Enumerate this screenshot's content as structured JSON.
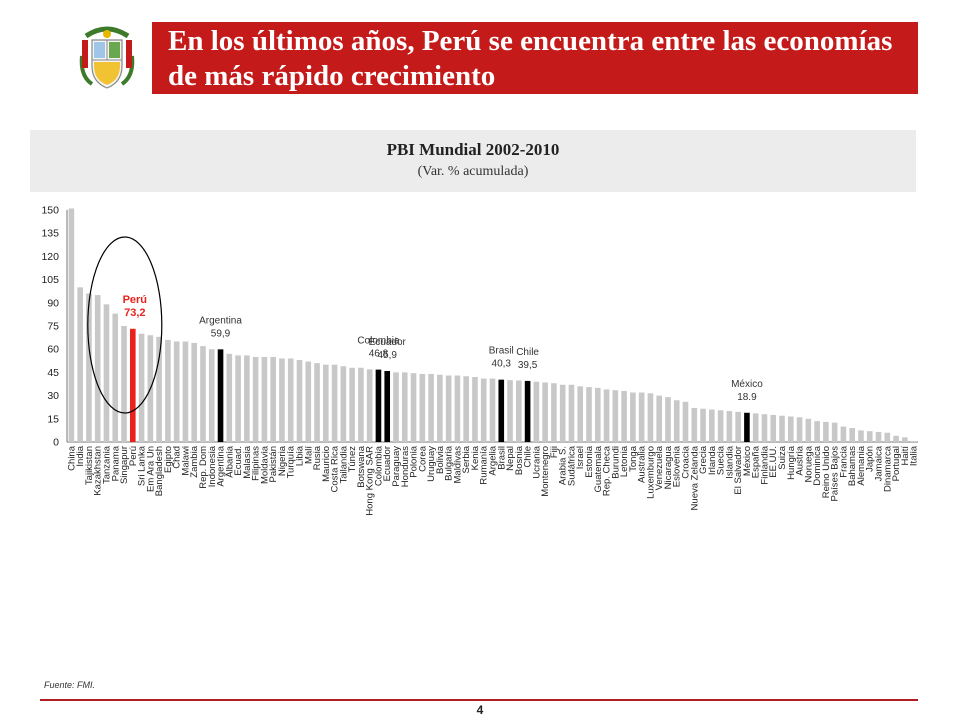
{
  "header": {
    "title": "En los últimos años, Perú se encuentra entre las economías de más rápido crecimiento"
  },
  "chart_header": {
    "title": "PBI Mundial 2002-2010",
    "subtitle": "(Var. % acumulada)"
  },
  "footer": {
    "source": "Fuente: FMI.",
    "page": "4"
  },
  "colors": {
    "title_bar": "#c41a1a",
    "bar_default": "#c8c8c8",
    "bar_highlight_peru": "#e8231c",
    "bar_highlight_other": "#000000",
    "peru_label": "#e8231c",
    "ellipse": "#000000"
  },
  "chart_data": {
    "type": "bar",
    "ylim": [
      0,
      150
    ],
    "yticks": [
      0,
      15,
      30,
      45,
      60,
      75,
      90,
      105,
      120,
      135,
      150
    ],
    "categories": [
      "China",
      "India",
      "Tajikistan",
      "Kazakhstan",
      "Tanzania",
      "Panama",
      "Singapur",
      "Perú",
      "Sri Lanka",
      "Em Ara Un",
      "Bangladesh",
      "Egipto",
      "Chad",
      "Malawi",
      "Zambia",
      "Rep. Dom",
      "Indonesia",
      "Argentina",
      "Albania",
      "Ecuad.",
      "Malasia",
      "Filipinas",
      "Moldavia",
      "Pakistán",
      "Nigeria",
      "Turquía",
      "Libia",
      "Malí",
      "Rusia",
      "Mauricio",
      "Costa Rica",
      "Tailandia",
      "Túnez",
      "Botswana",
      "Hong Kong SAR",
      "Colombia",
      "Ecuador",
      "Paraguay",
      "Honduras",
      "Polonia",
      "Corea",
      "Uruguay",
      "Bolivia",
      "Bulgaria",
      "Maldivas",
      "Serbia",
      "Kenia",
      "Rumanía",
      "Argelia",
      "Brasil",
      "Nepal",
      "Bosnia",
      "Chile",
      "Ucrania",
      "Montenegro",
      "Fiji",
      "Arabia S.",
      "Sudáfrica",
      "Israel",
      "Estonia",
      "Guatemala",
      "Rep. Checa",
      "Burundi",
      "Letonia",
      "Tonga",
      "Australia",
      "Luxemburgo",
      "Venezuela",
      "Nicaragua",
      "Eslovenia",
      "Croacia",
      "Nueva Zelanda",
      "Grecia",
      "Irlanda",
      "Suecia",
      "Islandia",
      "El Salvador",
      "México",
      "España",
      "Finlandia",
      "EE.UU.",
      "Suiza",
      "Hungría",
      "Austria",
      "Noruega",
      "Dominica",
      "Reino Unido",
      "Países Bajos",
      "Francia",
      "Bahamas",
      "Alemania",
      "Japón",
      "Jamaica",
      "Dinamarca",
      "Portugal",
      "Haití",
      "Italia"
    ],
    "values": [
      151,
      100,
      96,
      95,
      89,
      83,
      75,
      73.2,
      70,
      69,
      68,
      66,
      65,
      65,
      64,
      62,
      60,
      59.9,
      57,
      56,
      56,
      55,
      55,
      55,
      54,
      54,
      53,
      52,
      51,
      50,
      50,
      49,
      48,
      48,
      47,
      46.8,
      45.9,
      45,
      45,
      44.5,
      44,
      44,
      43.5,
      43,
      43,
      42.5,
      42,
      41,
      41,
      40.3,
      40,
      39.8,
      39.5,
      39,
      38.5,
      38,
      37,
      37,
      36,
      35.5,
      35,
      34,
      33.5,
      33,
      32,
      32,
      31.5,
      30,
      29,
      27,
      26,
      22,
      21.5,
      21,
      20.5,
      20,
      19.5,
      18.9,
      18.5,
      18,
      17.5,
      17,
      16.5,
      16,
      15,
      13.5,
      13,
      12.5,
      10,
      9,
      7.5,
      7,
      6.5,
      6,
      4,
      3,
      0.5
    ],
    "highlights": [
      {
        "name": "Perú",
        "value": "73,2",
        "index": 7
      },
      {
        "name": "Argentina",
        "value": "59,9",
        "index": 17
      },
      {
        "name": "Colombia",
        "value": "46,8",
        "index": 35
      },
      {
        "name": "Ecuador",
        "value": "45,9",
        "index": 36
      },
      {
        "name": "Brasil",
        "value": "40,3",
        "index": 49
      },
      {
        "name": "Chile",
        "value": "39,5",
        "index": 52
      },
      {
        "name": "México",
        "value": "18.9",
        "index": 77
      }
    ]
  }
}
